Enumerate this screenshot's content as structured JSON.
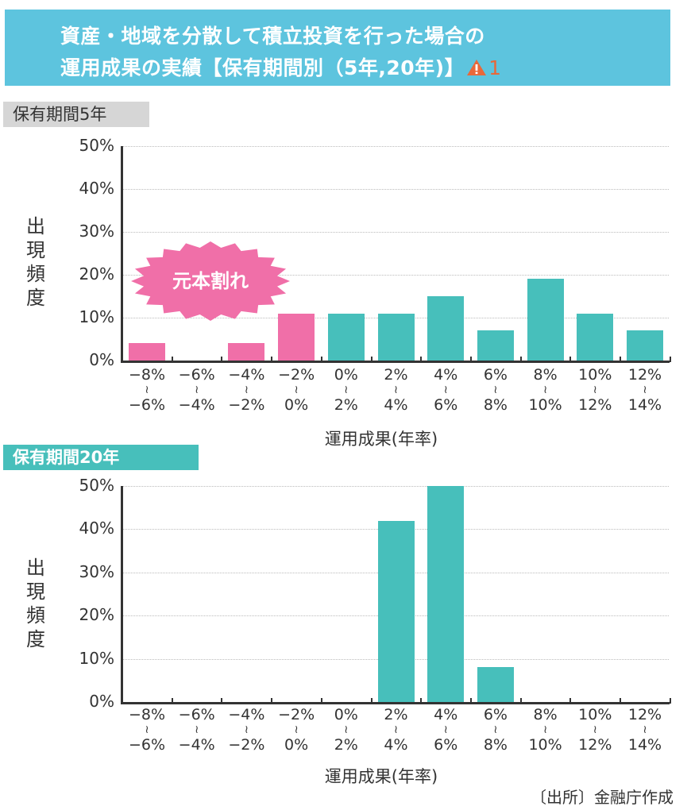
{
  "title": {
    "line1": "資産・地域を分散して積立投資を行った場合の",
    "line2": "運用成果の実績【保有期間別（5年,20年)】",
    "warning_icon": "warning-triangle-icon",
    "footnote_ref": "1"
  },
  "colors": {
    "title_bg": "#5dc4de",
    "loss": "#f06fa8",
    "gain": "#47bfbb",
    "tag5_bg": "#d6d6d6",
    "tag20_bg": "#47bfbb"
  },
  "charts": [
    {
      "tag": "保有期間5年",
      "ylabel_chars": [
        "出",
        "現",
        "頻",
        "度"
      ],
      "xlabel": "運用成果(年率)",
      "yticks": [
        "50%",
        "40%",
        "30%",
        "20%",
        "10%",
        "0%"
      ],
      "annotation": "元本割れ"
    },
    {
      "tag": "保有期間20年",
      "ylabel_chars": [
        "出",
        "現",
        "頻",
        "度"
      ],
      "xlabel": "運用成果(年率)",
      "yticks": [
        "50%",
        "40%",
        "30%",
        "20%",
        "10%",
        "0%"
      ]
    }
  ],
  "xcats": [
    {
      "from": "−8%",
      "to": "−6%"
    },
    {
      "from": "−6%",
      "to": "−4%"
    },
    {
      "from": "−4%",
      "to": "−2%"
    },
    {
      "from": "−2%",
      "to": "0%"
    },
    {
      "from": "0%",
      "to": "2%"
    },
    {
      "from": "2%",
      "to": "4%"
    },
    {
      "from": "4%",
      "to": "6%"
    },
    {
      "from": "6%",
      "to": "8%"
    },
    {
      "from": "8%",
      "to": "10%"
    },
    {
      "from": "10%",
      "to": "12%"
    },
    {
      "from": "12%",
      "to": "14%"
    }
  ],
  "tilde": "≀",
  "source": "〔出所〕金融庁作成",
  "chart_data": [
    {
      "type": "bar",
      "title": "保有期間5年",
      "xlabel": "運用成果(年率)",
      "ylabel": "出現頻度",
      "ylim": [
        0,
        50
      ],
      "yticks": [
        0,
        10,
        20,
        30,
        40,
        50
      ],
      "grid": true,
      "categories": [
        "-8%~-6%",
        "-6%~-4%",
        "-4%~-2%",
        "-2%~0%",
        "0%~2%",
        "2%~4%",
        "4%~6%",
        "6%~8%",
        "8%~10%",
        "10%~12%",
        "12%~14%"
      ],
      "values": [
        4,
        0,
        4,
        11,
        11,
        11,
        15,
        7,
        19,
        11,
        7
      ],
      "bar_colors": [
        "#f06fa8",
        "#f06fa8",
        "#f06fa8",
        "#f06fa8",
        "#47bfbb",
        "#47bfbb",
        "#47bfbb",
        "#47bfbb",
        "#47bfbb",
        "#47bfbb",
        "#47bfbb"
      ],
      "annotations": [
        {
          "text": "元本割れ",
          "applies_to": [
            "-8%~-6%",
            "-6%~-4%",
            "-4%~-2%",
            "-2%~0%"
          ]
        }
      ]
    },
    {
      "type": "bar",
      "title": "保有期間20年",
      "xlabel": "運用成果(年率)",
      "ylabel": "出現頻度",
      "ylim": [
        0,
        50
      ],
      "yticks": [
        0,
        10,
        20,
        30,
        40,
        50
      ],
      "grid": true,
      "categories": [
        "-8%~-6%",
        "-6%~-4%",
        "-4%~-2%",
        "-2%~0%",
        "0%~2%",
        "2%~4%",
        "4%~6%",
        "6%~8%",
        "8%~10%",
        "10%~12%",
        "12%~14%"
      ],
      "values": [
        0,
        0,
        0,
        0,
        0,
        42,
        50,
        8,
        0,
        0,
        0
      ],
      "bar_colors": [
        "#47bfbb",
        "#47bfbb",
        "#47bfbb",
        "#47bfbb",
        "#47bfbb",
        "#47bfbb",
        "#47bfbb",
        "#47bfbb",
        "#47bfbb",
        "#47bfbb",
        "#47bfbb"
      ]
    }
  ]
}
